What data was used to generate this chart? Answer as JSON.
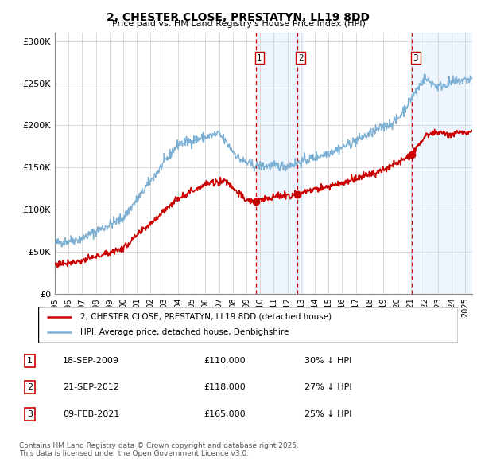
{
  "title": "2, CHESTER CLOSE, PRESTATYN, LL19 8DD",
  "subtitle": "Price paid vs. HM Land Registry's House Price Index (HPI)",
  "ylabel_ticks": [
    "£0",
    "£50K",
    "£100K",
    "£150K",
    "£200K",
    "£250K",
    "£300K"
  ],
  "ylim": [
    0,
    310000
  ],
  "xlim_start": 1995.0,
  "xlim_end": 2025.5,
  "legend_line1": "2, CHESTER CLOSE, PRESTATYN, LL19 8DD (detached house)",
  "legend_line2": "HPI: Average price, detached house, Denbighshire",
  "transaction1_date": "18-SEP-2009",
  "transaction1_price": "£110,000",
  "transaction1_hpi": "30% ↓ HPI",
  "transaction1_x": 2009.72,
  "transaction1_y": 110000,
  "transaction2_date": "21-SEP-2012",
  "transaction2_price": "£118,000",
  "transaction2_hpi": "27% ↓ HPI",
  "transaction2_x": 2012.72,
  "transaction2_y": 118000,
  "transaction3_date": "09-FEB-2021",
  "transaction3_price": "£165,000",
  "transaction3_hpi": "25% ↓ HPI",
  "transaction3_x": 2021.11,
  "transaction3_y": 165000,
  "footer": "Contains HM Land Registry data © Crown copyright and database right 2025.\nThis data is licensed under the Open Government Licence v3.0.",
  "red_color": "#cc0000",
  "blue_color": "#7bafd4",
  "shade_color": "#ddeeff",
  "background_color": "#ffffff"
}
